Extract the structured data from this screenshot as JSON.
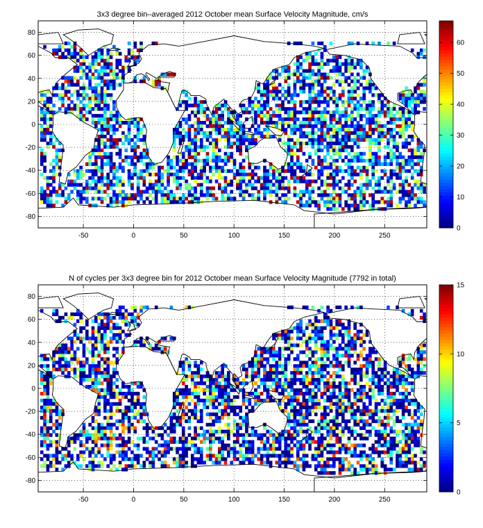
{
  "figure": {
    "background": "#ffffff",
    "axis_color": "#000000",
    "grid_style": "dotted"
  },
  "chart_data": [
    {
      "type": "heatmap",
      "title": "3x3 degree bin–averaged 2012 October mean Surface Velocity Magnitude, cm/s",
      "xlabel": "",
      "ylabel": "",
      "xlim": [
        -95,
        292
      ],
      "ylim": [
        -90,
        90
      ],
      "xticks": [
        -50,
        0,
        50,
        100,
        150,
        200,
        250
      ],
      "yticks": [
        -80,
        -60,
        -40,
        -20,
        0,
        20,
        40,
        60,
        80
      ],
      "grid": true,
      "bin_size_deg": 3,
      "colormap": "jet",
      "colorbar": {
        "min": 0,
        "max": 67,
        "ticks": [
          0,
          10,
          20,
          30,
          40,
          50,
          60
        ]
      },
      "sample_cells": [
        {
          "lon": -68,
          "lat": 38,
          "value": 55
        },
        {
          "lon": -50,
          "lat": 8,
          "value": 62
        },
        {
          "lon": -20,
          "lat": -45,
          "value": 18
        },
        {
          "lon": 58,
          "lat": -42,
          "value": 60
        },
        {
          "lon": 140,
          "lat": 35,
          "value": 42
        },
        {
          "lon": 200,
          "lat": 5,
          "value": 58
        },
        {
          "lon": 250,
          "lat": -30,
          "value": 12
        },
        {
          "lon": 270,
          "lat": 30,
          "value": 28
        }
      ]
    },
    {
      "type": "heatmap",
      "title": "N of cycles per 3x3 degree bin for 2012 October mean Surface Velocity Magnitude (7792 in total)",
      "xlabel": "",
      "ylabel": "",
      "xlim": [
        -95,
        292
      ],
      "ylim": [
        -90,
        90
      ],
      "xticks": [
        -50,
        0,
        50,
        100,
        150,
        200,
        250
      ],
      "yticks": [
        -80,
        -60,
        -40,
        -20,
        0,
        20,
        40,
        60,
        80
      ],
      "grid": true,
      "bin_size_deg": 3,
      "colormap": "jet",
      "total_cycles": 7792,
      "colorbar": {
        "min": 0,
        "max": 15,
        "ticks": [
          0,
          5,
          10,
          15
        ]
      },
      "sample_cells": [
        {
          "lon": -65,
          "lat": 35,
          "value": 12
        },
        {
          "lon": 30,
          "lat": 35,
          "value": 13
        },
        {
          "lon": 125,
          "lat": 22,
          "value": 14
        },
        {
          "lon": 60,
          "lat": -20,
          "value": 4
        },
        {
          "lon": 180,
          "lat": 30,
          "value": 3
        },
        {
          "lon": 280,
          "lat": 25,
          "value": 10
        }
      ]
    }
  ]
}
